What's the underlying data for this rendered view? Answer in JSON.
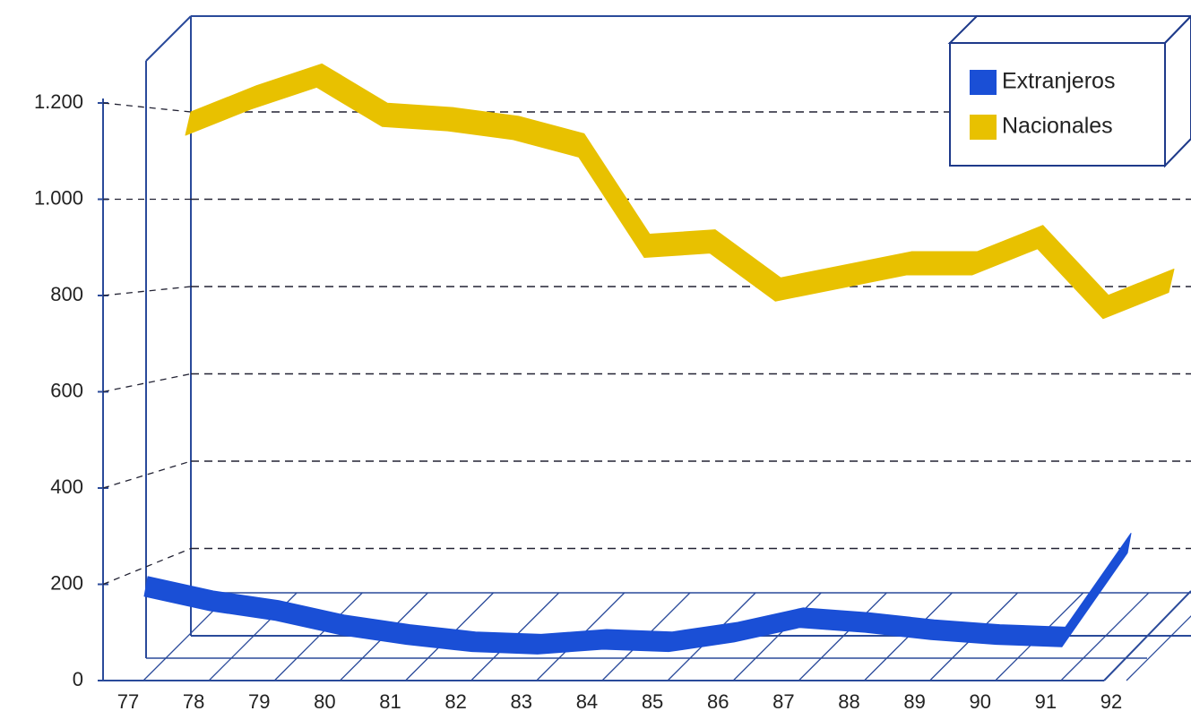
{
  "chart_data": {
    "type": "line",
    "categories": [
      "77",
      "78",
      "79",
      "80",
      "81",
      "82",
      "83",
      "84",
      "85",
      "86",
      "87",
      "88",
      "89",
      "90",
      "91",
      "92"
    ],
    "series": [
      {
        "name": "Extranjeros",
        "color": "#1a4fd6",
        "values": [
          190,
          160,
          140,
          110,
          90,
          75,
          70,
          80,
          75,
          95,
          125,
          115,
          100,
          90,
          85,
          280
        ]
      },
      {
        "name": "Nacionales",
        "color": "#e8c100",
        "values": [
          1200,
          1260,
          1310,
          1220,
          1210,
          1190,
          1150,
          920,
          930,
          820,
          850,
          880,
          880,
          940,
          780,
          840
        ]
      }
    ],
    "ylim": [
      0,
      1200
    ],
    "yticks": [
      0,
      200,
      400,
      600,
      800,
      {
        "value": 1000,
        "label": "1.000"
      },
      {
        "value": 1200,
        "label": "1.200"
      }
    ],
    "grid": true,
    "legend": "upper right"
  }
}
